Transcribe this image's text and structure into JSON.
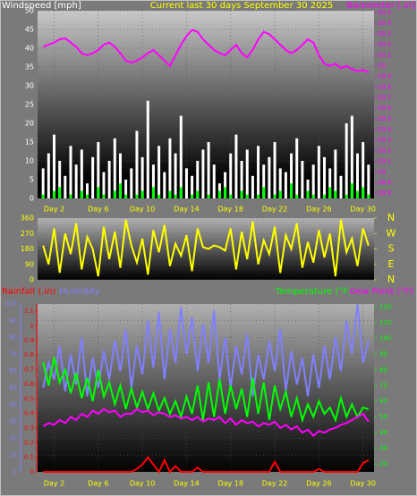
{
  "chart_data": [
    {
      "type": "combo",
      "title": "Current last 30 days September 30 2025",
      "title_color": "#ffff00",
      "xlim": [
        0.5,
        31
      ],
      "xticks": [
        {
          "value": 2,
          "label": "Day 2"
        },
        {
          "value": 6,
          "label": "Day 6"
        },
        {
          "value": 10,
          "label": "Day 10"
        },
        {
          "value": 14,
          "label": "Day 14"
        },
        {
          "value": 18,
          "label": "Day 18"
        },
        {
          "value": 22,
          "label": "Day 22"
        },
        {
          "value": 26,
          "label": "Day 26"
        },
        {
          "value": 30,
          "label": "Day 30"
        }
      ],
      "x": [
        1,
        1.5,
        2,
        2.5,
        3,
        3.5,
        4,
        4.5,
        5,
        5.5,
        6,
        6.5,
        7,
        7.5,
        8,
        8.5,
        9,
        9.5,
        10,
        10.5,
        11,
        11.5,
        12,
        12.5,
        13,
        13.5,
        14,
        14.5,
        15,
        15.5,
        16,
        16.5,
        17,
        17.5,
        18,
        18.5,
        19,
        19.5,
        20,
        20.5,
        21,
        21.5,
        22,
        22.5,
        23,
        23.5,
        24,
        24.5,
        25,
        25.5,
        26,
        26.5,
        27,
        27.5,
        28,
        28.5,
        29,
        29.5,
        30,
        30.5
      ],
      "ylim": [
        0,
        50
      ],
      "yticks": [
        0,
        5,
        10,
        15,
        20,
        25,
        30,
        35,
        40,
        45,
        50
      ],
      "y2lim": [
        28.75,
        30.52
      ],
      "y2ticks": [
        28.8,
        28.9,
        29,
        29.1,
        29.2,
        29.3,
        29.4,
        29.5,
        29.6,
        29.7,
        29.8,
        29.9,
        30,
        30.1,
        30.2,
        30.3,
        30.4,
        30.5
      ],
      "grid": true,
      "series": [
        {
          "name": "Windspeed [mph]",
          "type": "bar",
          "axis": "y",
          "color": "#ffffff",
          "values": [
            8,
            12,
            17,
            10,
            6,
            14,
            9,
            13,
            4,
            11,
            15,
            7,
            10,
            16,
            12,
            5,
            8,
            18,
            11,
            26,
            9,
            14,
            7,
            16,
            12,
            22,
            8,
            6,
            10,
            13,
            15,
            9,
            4,
            7,
            12,
            17,
            10,
            13,
            6,
            14,
            9,
            11,
            15,
            8,
            7,
            12,
            16,
            10,
            5,
            9,
            14,
            11,
            8,
            13,
            6,
            20,
            22,
            12,
            15,
            9
          ]
        },
        {
          "type": "bar",
          "axis": "y",
          "color": "#00ff00",
          "values": [
            1,
            0,
            2,
            3,
            0,
            1,
            0,
            2,
            1,
            0,
            3,
            1,
            0,
            2,
            4,
            1,
            0,
            1,
            2,
            0,
            3,
            1,
            0,
            2,
            1,
            3,
            0,
            1,
            2,
            0,
            1,
            0,
            2,
            3,
            1,
            0,
            2,
            1,
            0,
            1,
            3,
            0,
            1,
            2,
            0,
            4,
            1,
            0,
            2,
            1,
            0,
            1,
            3,
            2,
            0,
            1,
            4,
            2,
            3,
            1
          ]
        },
        {
          "name": "Barometer [.in]",
          "type": "line",
          "axis": "y2",
          "color": "#ff00ff",
          "values": [
            30.18,
            30.2,
            30.22,
            30.25,
            30.26,
            30.22,
            30.18,
            30.12,
            30.1,
            30.12,
            30.15,
            30.2,
            30.22,
            30.18,
            30.12,
            30.05,
            30.03,
            30.05,
            30.08,
            30.12,
            30.15,
            30.1,
            30.05,
            30.0,
            30.1,
            30.2,
            30.28,
            30.34,
            30.32,
            30.25,
            30.2,
            30.15,
            30.12,
            30.1,
            30.15,
            30.2,
            30.12,
            30.08,
            30.15,
            30.25,
            30.32,
            30.3,
            30.25,
            30.2,
            30.15,
            30.12,
            30.15,
            30.2,
            30.25,
            30.22,
            30.1,
            30.02,
            30.0,
            30.02,
            29.98,
            30.0,
            29.97,
            29.95,
            29.96,
            29.94
          ]
        }
      ]
    },
    {
      "type": "line",
      "xlim": [
        0.5,
        31
      ],
      "x": [
        1,
        1.5,
        2,
        2.5,
        3,
        3.5,
        4,
        4.5,
        5,
        5.5,
        6,
        6.5,
        7,
        7.5,
        8,
        8.5,
        9,
        9.5,
        10,
        10.5,
        11,
        11.5,
        12,
        12.5,
        13,
        13.5,
        14,
        14.5,
        15,
        15.5,
        16,
        16.5,
        17,
        17.5,
        18,
        18.5,
        19,
        19.5,
        20,
        20.5,
        21,
        21.5,
        22,
        22.5,
        23,
        23.5,
        24,
        24.5,
        25,
        25.5,
        26,
        26.5,
        27,
        27.5,
        28,
        28.5,
        29,
        29.5,
        30,
        30.5
      ],
      "ylim": [
        0,
        360
      ],
      "yticks": [
        0,
        90,
        180,
        270,
        360
      ],
      "y2lim": [
        0,
        360
      ],
      "y2ticks": [
        {
          "value": 360,
          "label": "N"
        },
        {
          "value": 270,
          "label": "W"
        },
        {
          "value": 180,
          "label": "S"
        },
        {
          "value": 90,
          "label": "E"
        },
        {
          "value": 0,
          "label": "N"
        }
      ],
      "grid": true,
      "series": [
        {
          "type": "line",
          "axis": "y",
          "color": "#ffff00",
          "values": [
            200,
            90,
            300,
            40,
            270,
            150,
            330,
            60,
            250,
            180,
            20,
            310,
            120,
            280,
            70,
            350,
            200,
            100,
            240,
            30,
            290,
            160,
            320,
            80,
            210,
            140,
            260,
            50,
            300,
            190,
            180,
            200,
            190,
            170,
            300,
            60,
            280,
            120,
            340,
            90,
            230,
            150,
            310,
            40,
            260,
            180,
            330,
            70,
            220,
            100,
            290,
            130,
            270,
            20,
            350,
            160,
            240,
            80,
            300,
            200
          ]
        }
      ]
    },
    {
      "type": "combo",
      "xlim": [
        0.5,
        31
      ],
      "xticks": [
        {
          "value": 2,
          "label": "Day 2"
        },
        {
          "value": 6,
          "label": "Day 6"
        },
        {
          "value": 10,
          "label": "Day 10"
        },
        {
          "value": 14,
          "label": "Day 14"
        },
        {
          "value": 18,
          "label": "Day 18"
        },
        {
          "value": 22,
          "label": "Day 22"
        },
        {
          "value": 26,
          "label": "Day 26"
        },
        {
          "value": 30,
          "label": "Day 30"
        }
      ],
      "x": [
        1,
        1.5,
        2,
        2.5,
        3,
        3.5,
        4,
        4.5,
        5,
        5.5,
        6,
        6.5,
        7,
        7.5,
        8,
        8.5,
        9,
        9.5,
        10,
        10.5,
        11,
        11.5,
        12,
        12.5,
        13,
        13.5,
        14,
        14.5,
        15,
        15.5,
        16,
        16.5,
        17,
        17.5,
        18,
        18.5,
        19,
        19.5,
        20,
        20.5,
        21,
        21.5,
        22,
        22.5,
        23,
        23.5,
        24,
        24.5,
        25,
        25.5,
        26,
        26.5,
        27,
        27.5,
        28,
        28.5,
        29,
        29.5,
        30,
        30.5
      ],
      "ylim": [
        0,
        100
      ],
      "yticks": [
        0,
        10,
        20,
        30,
        40,
        50,
        60,
        70,
        80,
        90,
        100
      ],
      "y3lim": [
        0,
        1.15
      ],
      "y3ticks": [
        0,
        0.1,
        0.2,
        0.3,
        0.4,
        0.5,
        0.6,
        0.7,
        0.8,
        0.9,
        1,
        1.1
      ],
      "y2lim": [
        15,
        122
      ],
      "y2ticks": [
        20,
        30,
        40,
        50,
        60,
        70,
        80,
        90,
        100,
        110,
        120
      ],
      "grid": true,
      "series": [
        {
          "name": "Rainfall (.in)",
          "type": "line",
          "axis": "y3",
          "color": "#ff0000",
          "values": [
            0,
            0,
            0,
            0,
            0,
            0,
            0,
            0,
            0,
            0,
            0,
            0,
            0,
            0,
            0,
            0,
            0,
            0.02,
            0.05,
            0.1,
            0.05,
            0,
            0.08,
            0,
            0.04,
            0,
            0,
            0,
            0.03,
            0,
            0,
            0,
            0,
            0,
            0,
            0,
            0,
            0,
            0,
            0,
            0,
            0,
            0.07,
            0,
            0,
            0,
            0,
            0,
            0,
            0,
            0.02,
            0,
            0,
            0,
            0,
            0,
            0,
            0,
            0.06,
            0.08
          ]
        },
        {
          "name": "Humidity",
          "type": "line",
          "axis": "y",
          "color": "#8080ff",
          "values": [
            50,
            65,
            55,
            75,
            48,
            70,
            52,
            80,
            45,
            68,
            50,
            72,
            55,
            78,
            60,
            85,
            50,
            75,
            58,
            90,
            62,
            95,
            55,
            85,
            65,
            98,
            70,
            92,
            60,
            88,
            65,
            96,
            55,
            80,
            50,
            75,
            58,
            82,
            45,
            70,
            55,
            78,
            60,
            85,
            48,
            72,
            52,
            68,
            45,
            70,
            50,
            75,
            55,
            80,
            60,
            90,
            70,
            100,
            65,
            78
          ]
        },
        {
          "name": "Temperature (°F)",
          "type": "line",
          "axis": "y2",
          "color": "#00ff00",
          "values": [
            85,
            70,
            88,
            72,
            80,
            65,
            78,
            62,
            75,
            60,
            80,
            63,
            72,
            58,
            70,
            55,
            68,
            56,
            66,
            55,
            65,
            54,
            62,
            52,
            60,
            50,
            63,
            52,
            70,
            48,
            72,
            50,
            74,
            52,
            70,
            55,
            68,
            50,
            75,
            52,
            72,
            48,
            70,
            55,
            66,
            50,
            62,
            48,
            58,
            50,
            60,
            52,
            56,
            48,
            62,
            50,
            58,
            50,
            56,
            55
          ]
        },
        {
          "name": "Dew Point (°F)",
          "type": "line",
          "axis": "y2",
          "color": "#ff00ff",
          "values": [
            44,
            46,
            45,
            48,
            46,
            50,
            48,
            52,
            50,
            54,
            52,
            55,
            53,
            54,
            50,
            52,
            52,
            55,
            53,
            54,
            51,
            53,
            52,
            50,
            51,
            49,
            50,
            48,
            50,
            47,
            49,
            48,
            50,
            46,
            49,
            45,
            48,
            46,
            47,
            44,
            46,
            45,
            47,
            43,
            45,
            42,
            44,
            40,
            42,
            38,
            41,
            40,
            42,
            43,
            45,
            46,
            48,
            50,
            52,
            47
          ]
        }
      ]
    }
  ]
}
